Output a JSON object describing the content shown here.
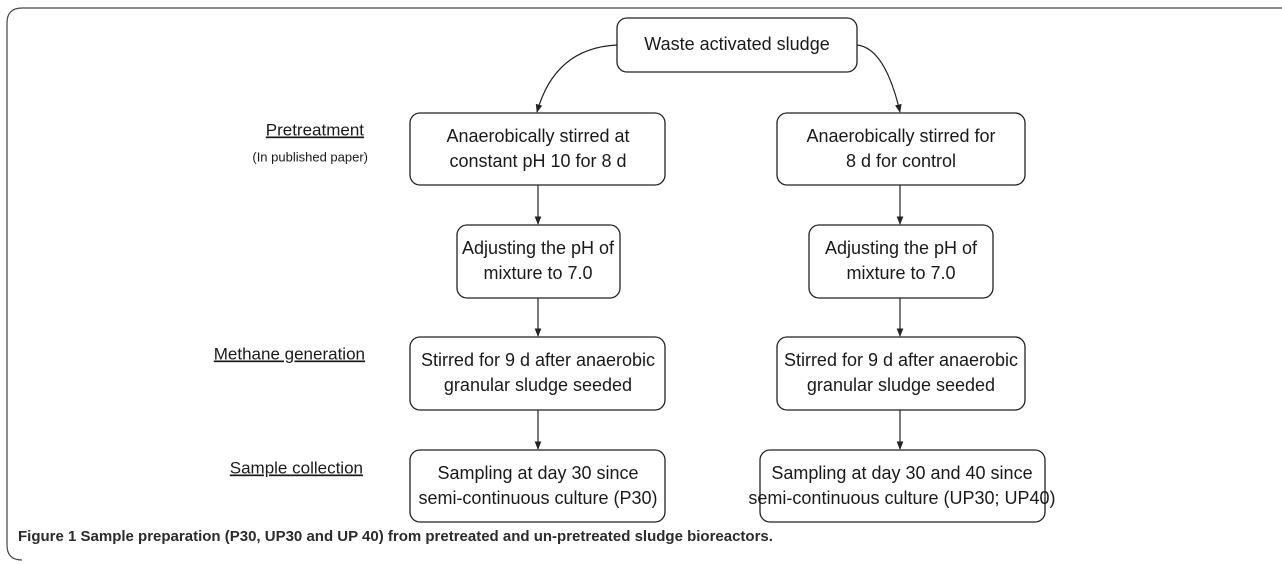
{
  "nodes": [
    {
      "lines": [
        "Waste activated sludge"
      ]
    },
    {
      "lines": [
        "Anaerobically stirred at",
        "constant pH 10 for 8 d"
      ]
    },
    {
      "lines": [
        "Anaerobically stirred for",
        "8 d for control"
      ]
    },
    {
      "lines": [
        "Adjusting the pH of",
        "mixture to 7.0"
      ]
    },
    {
      "lines": [
        "Adjusting the pH of",
        "mixture to 7.0"
      ]
    },
    {
      "lines": [
        "Stirred for 9 d after anaerobic",
        "granular sludge seeded"
      ]
    },
    {
      "lines": [
        "Stirred for 9 d after anaerobic",
        "granular sludge seeded"
      ]
    },
    {
      "lines": [
        "Sampling at day 30 since",
        "semi-continuous culture (P30)"
      ]
    },
    {
      "lines": [
        "Sampling at day 30 and 40 since",
        "semi-continuous culture (UP30; UP40)"
      ]
    }
  ],
  "stages": [
    {
      "label": "Pretreatment",
      "note": "(In published paper)"
    },
    {
      "label": "Methane generation"
    },
    {
      "label": "Sample collection"
    }
  ],
  "caption": {
    "label": "Figure 1",
    "text": "Sample preparation (P30, UP30 and UP 40) from pretreated and un-pretreated sludge bioreactors."
  }
}
